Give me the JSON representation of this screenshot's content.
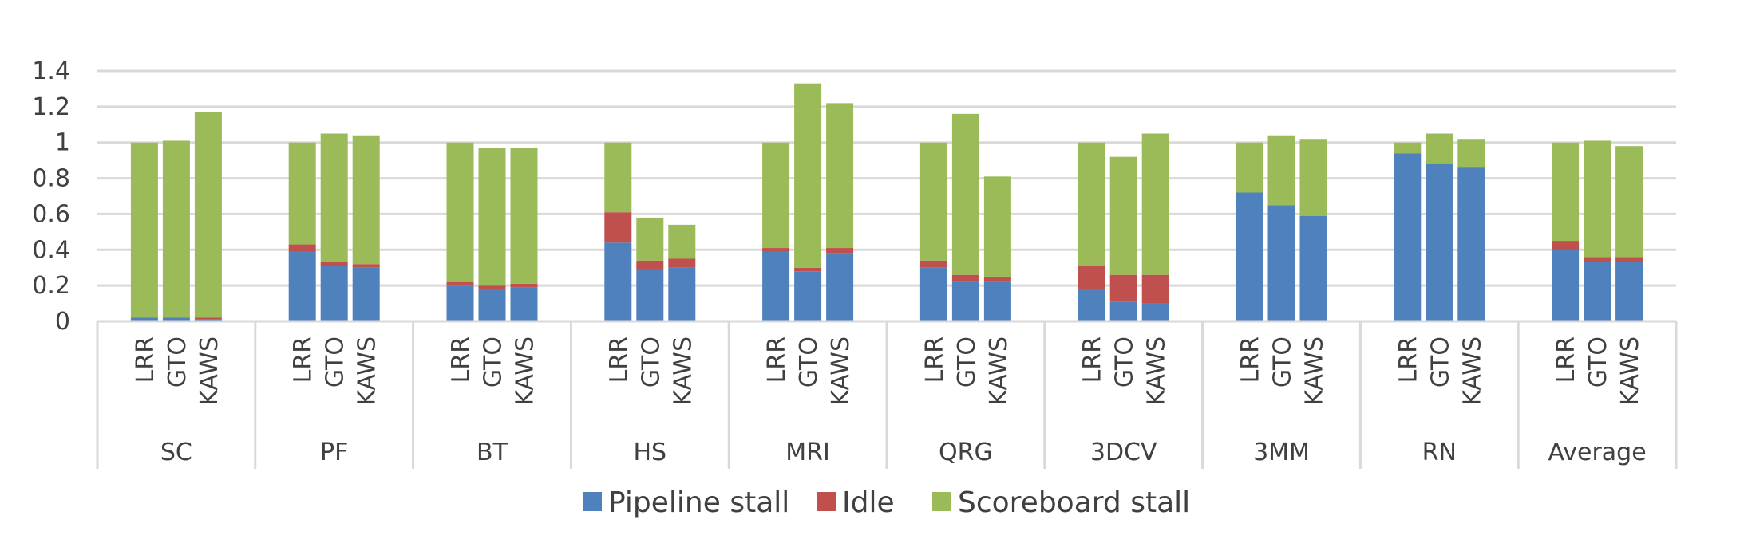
{
  "chart_data": {
    "type": "bar",
    "stacked": true,
    "title": "",
    "xlabel": "",
    "ylabel": "",
    "ylim": [
      0,
      1.4
    ],
    "yticks": [
      "0",
      "0.2",
      "0.4",
      "0.6",
      "0.8",
      "1",
      "1.2",
      "1.4"
    ],
    "grid": true,
    "legend_position": "bottom",
    "groups": [
      "SC",
      "PF",
      "BT",
      "HS",
      "MRI",
      "QRG",
      "3DCV",
      "3MM",
      "RN",
      "Average"
    ],
    "categories": [
      "LRR",
      "GTO",
      "KAWS"
    ],
    "series": [
      {
        "name": "Pipeline stall",
        "color": "#4F81BD",
        "values": [
          [
            0.02,
            0.02,
            0.01
          ],
          [
            0.39,
            0.31,
            0.3
          ],
          [
            0.2,
            0.18,
            0.19
          ],
          [
            0.44,
            0.29,
            0.3
          ],
          [
            0.39,
            0.28,
            0.38
          ],
          [
            0.3,
            0.22,
            0.22
          ],
          [
            0.18,
            0.11,
            0.1
          ],
          [
            0.72,
            0.65,
            0.59
          ],
          [
            0.94,
            0.88,
            0.86
          ],
          [
            0.4,
            0.33,
            0.33
          ]
        ]
      },
      {
        "name": "Idle",
        "color": "#C0504D",
        "values": [
          [
            0.0,
            0.0,
            0.01
          ],
          [
            0.04,
            0.02,
            0.02
          ],
          [
            0.02,
            0.02,
            0.02
          ],
          [
            0.17,
            0.05,
            0.05
          ],
          [
            0.02,
            0.02,
            0.03
          ],
          [
            0.04,
            0.04,
            0.03
          ],
          [
            0.13,
            0.15,
            0.16
          ],
          [
            0.0,
            0.0,
            0.0
          ],
          [
            0.0,
            0.0,
            0.0
          ],
          [
            0.05,
            0.03,
            0.03
          ]
        ]
      },
      {
        "name": "Scoreboard stall",
        "color": "#9BBB59",
        "values": [
          [
            0.98,
            0.99,
            1.15
          ],
          [
            0.57,
            0.72,
            0.72
          ],
          [
            0.78,
            0.77,
            0.76
          ],
          [
            0.39,
            0.24,
            0.19
          ],
          [
            0.59,
            1.03,
            0.81
          ],
          [
            0.66,
            0.9,
            0.56
          ],
          [
            0.69,
            0.66,
            0.79
          ],
          [
            0.28,
            0.39,
            0.43
          ],
          [
            0.06,
            0.17,
            0.16
          ],
          [
            0.55,
            0.65,
            0.62
          ]
        ]
      }
    ]
  }
}
